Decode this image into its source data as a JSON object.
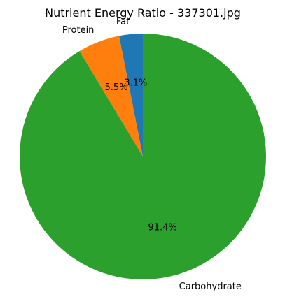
{
  "chart_data": {
    "type": "pie",
    "title": "Nutrient Energy Ratio - 337301.jpg",
    "slices": [
      {
        "label": "Fat",
        "value": 3.1,
        "pct_label": "3.1%",
        "color": "#1f77b4"
      },
      {
        "label": "Protein",
        "value": 5.5,
        "pct_label": "5.5%",
        "color": "#ff7f0e"
      },
      {
        "label": "Carbohydrate",
        "value": 91.4,
        "pct_label": "91.4%",
        "color": "#2ca02c"
      }
    ],
    "start_angle_deg": 90,
    "direction": "counterclockwise",
    "legend": "none"
  }
}
